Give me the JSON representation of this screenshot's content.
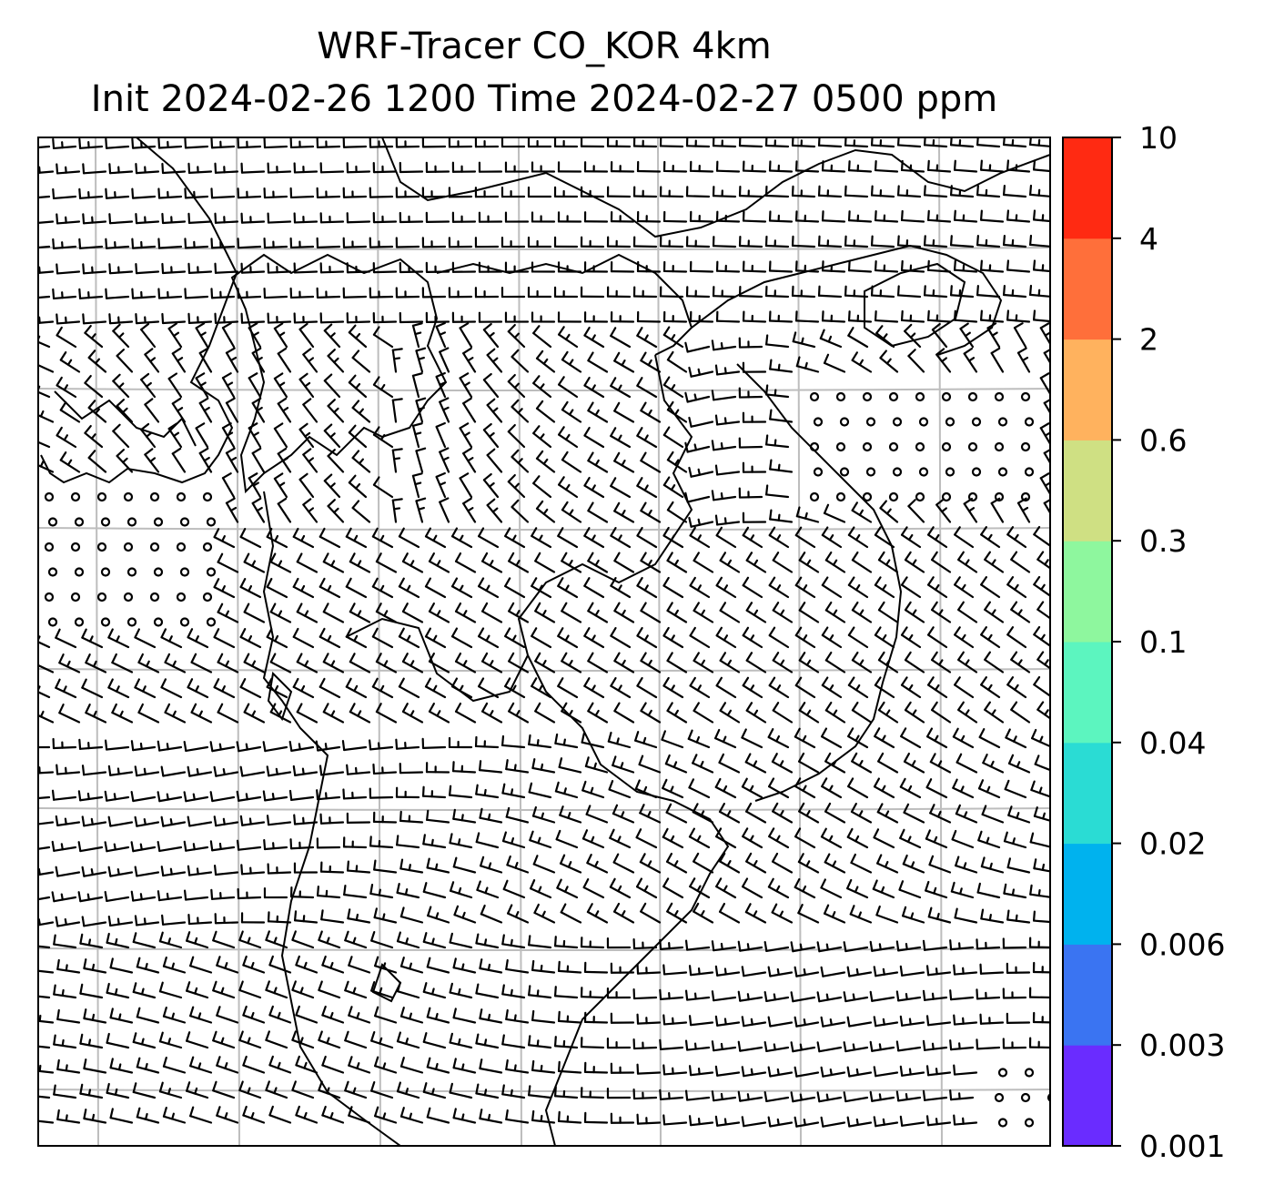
{
  "title": {
    "line1": "WRF-Tracer CO_KOR 4km",
    "line2": "Init 2024-02-26 1200 Time 2024-02-27 0500 ppm"
  },
  "colorbar": {
    "levels": [
      "0.001",
      "0.003",
      "0.006",
      "0.02",
      "0.04",
      "0.1",
      "0.3",
      "0.6",
      "2",
      "4",
      "10"
    ],
    "colors": [
      "#6a2cff",
      "#3a74f2",
      "#00b2ee",
      "#2adcd4",
      "#5cf5bf",
      "#8ef79e",
      "#cfe083",
      "#ffb25e",
      "#ff6f3a",
      "#ff2a12"
    ]
  },
  "map": {
    "grid_color": "#bdbdbd",
    "grid_columns": 7,
    "grid_rows": 7
  }
}
